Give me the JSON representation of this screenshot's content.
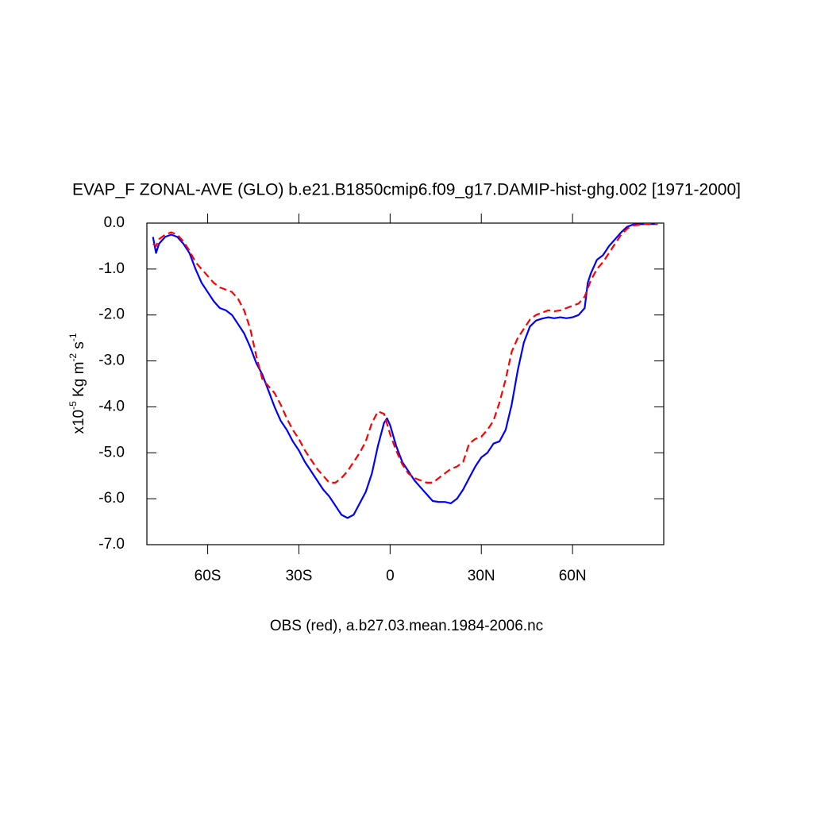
{
  "chart_data": {
    "type": "line",
    "title": "EVAP_F ZONAL-AVE (GLO) b.e21.B1850cmip6.f09_g17.DAMIP-hist-ghg.002 [1971-2000]",
    "subtitle": "OBS (red), a.b27.03.mean.1984-2006.nc",
    "ylabel": {
      "parts": [
        "x10",
        "-5",
        " Kg m",
        "-2",
        " s",
        "-1"
      ]
    },
    "xlim": [
      -80,
      90
    ],
    "ylim": [
      -7,
      0
    ],
    "xticks": [
      {
        "value": -60,
        "label": "60S"
      },
      {
        "value": -30,
        "label": "30S"
      },
      0,
      {
        "value": 30,
        "label": "30N"
      },
      {
        "value": 60,
        "label": "60N"
      }
    ],
    "yticks": [
      {
        "value": 0,
        "label": "0.0"
      },
      {
        "value": -1,
        "label": "-1.0"
      },
      {
        "value": -2,
        "label": "-2.0"
      },
      {
        "value": -3,
        "label": "-3.0"
      },
      {
        "value": -4,
        "label": "-4.0"
      },
      {
        "value": -5,
        "label": "-5.0"
      },
      {
        "value": -6,
        "label": "-6.0"
      },
      {
        "value": -7,
        "label": "-7.0"
      }
    ],
    "series": [
      {
        "color": "#0000ff",
        "dash": false,
        "x": [
          -78,
          -77,
          -76,
          -74,
          -72,
          -70,
          -68,
          -66,
          -64,
          -62,
          -60,
          -58,
          -56,
          -54,
          -52,
          -50,
          -48,
          -46,
          -44,
          -42,
          -40,
          -38,
          -36,
          -34,
          -32,
          -30,
          -28,
          -26,
          -24,
          -22,
          -20,
          -18,
          -16,
          -14,
          -12,
          -10,
          -8,
          -6,
          -4,
          -2,
          -1,
          0,
          2,
          4,
          6,
          8,
          10,
          12,
          14,
          16,
          18,
          20,
          22,
          24,
          26,
          28,
          30,
          32,
          34,
          36,
          38,
          40,
          42,
          44,
          46,
          48,
          50,
          52,
          54,
          56,
          58,
          60,
          62,
          64,
          65,
          66,
          68,
          70,
          72,
          74,
          76,
          78,
          80,
          84,
          88
        ],
        "values": [
          -0.3,
          -0.65,
          -0.45,
          -0.3,
          -0.25,
          -0.3,
          -0.45,
          -0.65,
          -1.0,
          -1.3,
          -1.5,
          -1.7,
          -1.85,
          -1.9,
          -2.0,
          -2.2,
          -2.4,
          -2.7,
          -3.05,
          -3.3,
          -3.65,
          -4.0,
          -4.3,
          -4.5,
          -4.75,
          -4.95,
          -5.2,
          -5.4,
          -5.6,
          -5.8,
          -5.95,
          -6.15,
          -6.35,
          -6.42,
          -6.35,
          -6.1,
          -5.85,
          -5.45,
          -4.85,
          -4.35,
          -4.25,
          -4.4,
          -4.85,
          -5.2,
          -5.4,
          -5.6,
          -5.75,
          -5.9,
          -6.05,
          -6.07,
          -6.07,
          -6.1,
          -6.0,
          -5.8,
          -5.55,
          -5.3,
          -5.1,
          -5.0,
          -4.8,
          -4.75,
          -4.5,
          -3.95,
          -3.2,
          -2.6,
          -2.25,
          -2.12,
          -2.08,
          -2.05,
          -2.07,
          -2.05,
          -2.07,
          -2.05,
          -2.0,
          -1.85,
          -1.3,
          -1.1,
          -0.8,
          -0.7,
          -0.5,
          -0.35,
          -0.2,
          -0.08,
          -0.03,
          -0.02,
          -0.02
        ]
      },
      {
        "color": "#ff0000",
        "dash": true,
        "x": [
          -78,
          -77,
          -76,
          -74,
          -72,
          -70,
          -68,
          -66,
          -64,
          -62,
          -60,
          -58,
          -56,
          -54,
          -52,
          -50,
          -48,
          -46,
          -44,
          -42,
          -40,
          -38,
          -36,
          -34,
          -32,
          -30,
          -28,
          -26,
          -24,
          -22,
          -20,
          -18,
          -16,
          -14,
          -12,
          -10,
          -8,
          -6,
          -4,
          -2,
          0,
          2,
          4,
          6,
          8,
          10,
          12,
          14,
          16,
          18,
          20,
          22,
          24,
          26,
          28,
          30,
          32,
          34,
          36,
          38,
          40,
          42,
          44,
          46,
          48,
          50,
          52,
          54,
          56,
          58,
          60,
          62,
          64,
          66,
          68,
          70,
          72,
          74,
          76,
          78,
          80,
          84,
          88
        ],
        "values": [
          -0.45,
          -0.5,
          -0.35,
          -0.25,
          -0.2,
          -0.25,
          -0.4,
          -0.6,
          -0.85,
          -1.0,
          -1.15,
          -1.3,
          -1.4,
          -1.45,
          -1.5,
          -1.65,
          -1.9,
          -2.3,
          -2.9,
          -3.4,
          -3.55,
          -3.7,
          -3.95,
          -4.25,
          -4.5,
          -4.7,
          -4.95,
          -5.15,
          -5.35,
          -5.5,
          -5.65,
          -5.65,
          -5.55,
          -5.4,
          -5.2,
          -5.0,
          -4.75,
          -4.35,
          -4.1,
          -4.15,
          -4.6,
          -4.95,
          -5.25,
          -5.45,
          -5.55,
          -5.6,
          -5.65,
          -5.65,
          -5.55,
          -5.45,
          -5.35,
          -5.3,
          -5.2,
          -4.8,
          -4.7,
          -4.65,
          -4.5,
          -4.3,
          -3.9,
          -3.4,
          -2.8,
          -2.5,
          -2.3,
          -2.1,
          -2.0,
          -1.95,
          -1.9,
          -1.92,
          -1.9,
          -1.85,
          -1.8,
          -1.75,
          -1.6,
          -1.25,
          -1.0,
          -0.85,
          -0.65,
          -0.45,
          -0.25,
          -0.12,
          -0.05,
          -0.02,
          -0.02
        ]
      }
    ]
  }
}
